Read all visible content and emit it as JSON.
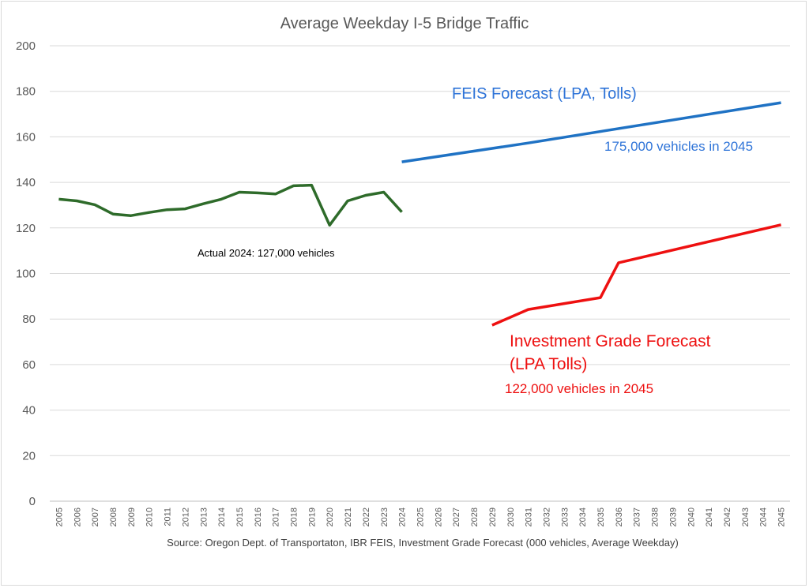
{
  "chart_data": {
    "type": "line",
    "title": "Average Weekday I-5 Bridge Traffic",
    "ylim": [
      0,
      200
    ],
    "yticks": [
      0,
      20,
      40,
      60,
      80,
      100,
      120,
      140,
      160,
      180,
      200
    ],
    "grid": true,
    "x": [
      "2005",
      "2006",
      "2007",
      "2008",
      "2009",
      "2010",
      "2011",
      "2012",
      "2013",
      "2014",
      "2015",
      "2016",
      "2017",
      "2018",
      "2019",
      "2020",
      "2021",
      "2022",
      "2023",
      "2024",
      "2025",
      "2026",
      "2027",
      "2028",
      "2029",
      "2030",
      "2031",
      "2032",
      "2033",
      "2034",
      "2035",
      "2036",
      "2037",
      "2038",
      "2039",
      "2040",
      "2041",
      "2042",
      "2043",
      "2044",
      "2045"
    ],
    "series": [
      {
        "color": "#2e6b2a",
        "points": [
          [
            "2005",
            132.6
          ],
          [
            "2006",
            131.9
          ],
          [
            "2007",
            130.2
          ],
          [
            "2008",
            126.1
          ],
          [
            "2009",
            125.4
          ],
          [
            "2010",
            126.8
          ],
          [
            "2011",
            128.0
          ],
          [
            "2012",
            128.4
          ],
          [
            "2013",
            130.6
          ],
          [
            "2014",
            132.6
          ],
          [
            "2015",
            135.7
          ],
          [
            "2016",
            135.4
          ],
          [
            "2017",
            134.9
          ],
          [
            "2018",
            138.5
          ],
          [
            "2019",
            138.8
          ],
          [
            "2020",
            121.2
          ],
          [
            "2021",
            131.9
          ],
          [
            "2022",
            134.3
          ],
          [
            "2023",
            135.7
          ],
          [
            "2024",
            127.0
          ]
        ]
      },
      {
        "color": "#1f72c4",
        "points": [
          [
            "2024",
            149.0
          ],
          [
            "2031",
            157.3
          ],
          [
            "2045",
            175.0
          ]
        ]
      },
      {
        "color": "#ee1010",
        "points": [
          [
            "2029",
            77.3
          ],
          [
            "2031",
            84.2
          ],
          [
            "2035",
            89.4
          ],
          [
            "2036",
            104.7
          ],
          [
            "2045",
            121.4
          ]
        ]
      }
    ],
    "annotations": {
      "feis_forecast": "FEIS  Forecast (LPA, Tolls)",
      "feis_2045": "175,000 vehicles in 2045",
      "ig_forecast_line1": "Investment Grade Forecast",
      "ig_forecast_line2": "(LPA Tolls)",
      "ig_2045": "122,000 vehicles in 2045",
      "actual_2024": "Actual 2024:  127,000 vehicles"
    },
    "source": "Source:  Oregon Dept. of Transportaton, IBR FEIS, Investment Grade Forecast (000 vehicles, Average Weekday)"
  }
}
